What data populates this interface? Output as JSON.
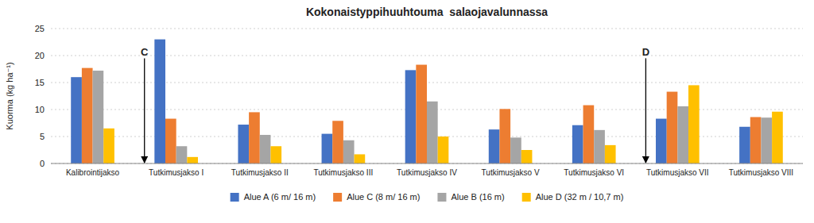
{
  "chart_data": {
    "type": "bar",
    "title": "Kokonaistyppihuuhtouma  salaojavalunnassa",
    "ylabel": "Kuorma (kg ha⁻¹)",
    "categories": [
      "Kalibrointijakso",
      "Tutkimusjakso I",
      "Tutkimusjakso II",
      "Tutkimusjakso III",
      "Tutkimusjakso IV",
      "Tutkimusjakso V",
      "Tutkimusjakso VI",
      "Tutkimusjakso VII",
      "Tutkimusjakso VIII"
    ],
    "series": [
      {
        "name": "Alue A (6 m/ 16 m)",
        "color": "#4472C4",
        "values": [
          16.0,
          23.0,
          7.2,
          5.5,
          17.3,
          6.3,
          7.1,
          8.3,
          6.8
        ]
      },
      {
        "name": "Alue C (8 m/ 16 m)",
        "color": "#ED7D31",
        "values": [
          17.7,
          8.3,
          9.5,
          7.9,
          18.3,
          10.1,
          10.8,
          13.3,
          8.6
        ]
      },
      {
        "name": "Alue B (16 m)",
        "color": "#A5A5A5",
        "values": [
          17.2,
          3.2,
          5.3,
          4.3,
          11.5,
          4.8,
          6.2,
          10.6,
          8.5
        ]
      },
      {
        "name": "Alue D (32 m / 10,7 m)",
        "color": "#FFC000",
        "values": [
          6.5,
          1.2,
          3.2,
          1.7,
          5.0,
          2.5,
          3.4,
          14.5,
          9.6
        ]
      }
    ],
    "annotations": [
      {
        "text": "C",
        "x": "Tutkimusjakso I",
        "y": 19.5
      },
      {
        "text": "D",
        "x": "Tutkimusjakso VII",
        "y": 19.5
      }
    ],
    "ylim": [
      0,
      25
    ],
    "yticks": [
      0,
      5,
      10,
      15,
      20,
      25
    ],
    "grid": true,
    "legend": "bottom"
  }
}
